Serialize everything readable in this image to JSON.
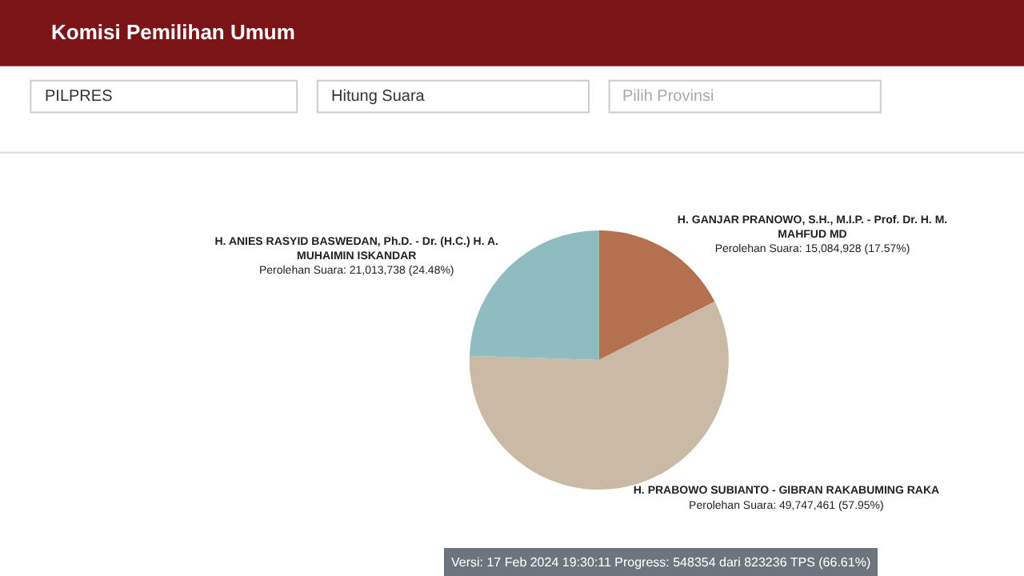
{
  "chart_data": {
    "type": "pie",
    "title": "Komisi Pemilihan Umum",
    "categories": [
      "H. GANJAR PRANOWO, S.H., M.I.P. - Prof. Dr. H. M. MAHFUD MD",
      "H. PRABOWO SUBIANTO - GIBRAN RAKABUMING RAKA",
      "H. ANIES RASYID BASWEDAN, Ph.D. - Dr. (H.C.) H. A. MUHAIMIN ISKANDAR"
    ],
    "values": [
      15084928,
      49747461,
      21013738
    ],
    "value_labels": [
      "Perolehan Suara: 15,084,928 (17.57%)",
      "Perolehan Suara: 49,747,461 (57.95%)",
      "Perolehan Suara: 21,013,738 (24.48%)"
    ],
    "colors": [
      "#b5714f",
      "#c9b9a5",
      "#8fbcc0"
    ],
    "legend": false,
    "annotations": [
      "PILPRES",
      "Hitung Suara",
      "Pilih Provinsi",
      "Versi: 17 Feb 2024 19:30:11 Progress: 548354 dari 823236 TPS (66.61%)"
    ]
  }
}
